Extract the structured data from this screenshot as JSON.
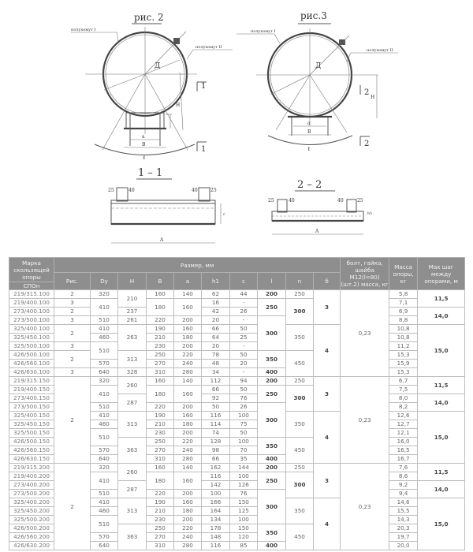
{
  "drawing": {
    "fig2_title": "рис. 2",
    "fig3_title": "рис.3",
    "section1_title": "1 – 1",
    "section2_title": "2 – 2",
    "clamp1_label": "полухомут I",
    "clamp2_label": "полухомут II",
    "section1_mark": "1",
    "section2_mark": "2",
    "dim_D": "Д",
    "dim_H": "H",
    "dim_l": "ℓ",
    "dim_B": "B",
    "dim_a": "a",
    "dim_A": "A",
    "dim_c": "c",
    "dim_h1": "h1",
    "dim_40": "40",
    "dim_25": "25"
  },
  "table": {
    "headers": {
      "mark": "Марка скользящей опоры",
      "mark_sub": "СПОн",
      "size": "Размер, мм",
      "fig": "Рис.",
      "dy": "Dy",
      "h": "H",
      "b": "B",
      "a": "a",
      "h1": "h1",
      "c": "c",
      "l": "l",
      "n": "n",
      "b6": "б",
      "bolt": "болт, гайка, шайба М12(l=80) (шт.2) масса, кг",
      "mass": "Масса опоры, кг",
      "step": "Мах шаг между опорами, м"
    },
    "groups": [
      [
        [
          "219/315.100",
          "2",
          "320",
          "210",
          "160",
          "140",
          "62",
          "44",
          "200",
          "250",
          "3",
          "0,23",
          "5,8",
          "11,5"
        ],
        [
          "219/400.100",
          "3",
          "410",
          null,
          "180",
          "160",
          "16",
          "-",
          "250",
          "300",
          null,
          null,
          "7,1",
          null
        ],
        [
          "273/400.100",
          "2",
          null,
          "237",
          null,
          null,
          "42",
          "26",
          null,
          null,
          null,
          null,
          "6,9",
          "14,0"
        ],
        [
          "273/500.100",
          "3",
          "510",
          "261",
          "220",
          "200",
          "20",
          "-",
          "300",
          null,
          null,
          null,
          "8,8",
          null
        ],
        [
          "325/400.100",
          "2",
          "410",
          "263",
          "190",
          "160",
          "66",
          "50",
          null,
          "350",
          "4",
          null,
          "10,8",
          "15,0"
        ],
        [
          "325/450.100",
          null,
          "460",
          null,
          "210",
          "180",
          "64",
          "25",
          null,
          null,
          null,
          null,
          "10,8",
          null
        ],
        [
          "325/500.100",
          "3",
          "510",
          null,
          "230",
          "200",
          "20",
          "-",
          null,
          null,
          null,
          null,
          "11,2",
          null
        ],
        [
          "426/500.100",
          "2",
          null,
          "313",
          "250",
          "220",
          "78",
          "50",
          "350",
          "450",
          null,
          null,
          "15,3",
          null
        ],
        [
          "426/560.100",
          null,
          "570",
          null,
          "270",
          "240",
          "48",
          "20",
          null,
          null,
          null,
          null,
          "15,9",
          null
        ],
        [
          "426/630.100",
          "3",
          "640",
          "328",
          "310",
          "280",
          "34",
          "-",
          "400",
          null,
          null,
          null,
          "15,3",
          null
        ]
      ],
      [
        [
          "219/315.150",
          "2",
          "320",
          "260",
          "160",
          "140",
          "112",
          "94",
          "200",
          "250",
          "3",
          "0,23",
          "6,7",
          "11,5"
        ],
        [
          "219/400.150",
          null,
          "410",
          null,
          "180",
          "160",
          "66",
          "50",
          "250",
          "300",
          null,
          null,
          "7,5",
          null
        ],
        [
          "273/400.150",
          null,
          null,
          "287",
          null,
          null,
          "92",
          "76",
          null,
          null,
          null,
          null,
          "8,0",
          "14,0"
        ],
        [
          "273/500.150",
          null,
          "510",
          null,
          "220",
          "200",
          "50",
          "26",
          "300",
          null,
          null,
          null,
          "8,2",
          null
        ],
        [
          "325/400.150",
          null,
          "410",
          "313",
          "190",
          "160",
          "116",
          "100",
          null,
          "350",
          "4",
          null,
          "12,6",
          "15,0"
        ],
        [
          "325/450.150",
          null,
          "460",
          null,
          "210",
          "180",
          "114",
          "75",
          null,
          null,
          null,
          null,
          "12,7",
          null
        ],
        [
          "325/500.150",
          null,
          "510",
          null,
          "230",
          "200",
          "74",
          "50",
          null,
          null,
          null,
          null,
          "12,1",
          null
        ],
        [
          "426/500.150",
          null,
          null,
          "363",
          "250",
          "220",
          "128",
          "100",
          "350",
          "450",
          null,
          null,
          "16,0",
          null
        ],
        [
          "426/560.150",
          null,
          "570",
          null,
          "270",
          "240",
          "98",
          "70",
          null,
          null,
          null,
          null,
          "16,5",
          null
        ],
        [
          "426/630.150",
          null,
          "640",
          null,
          "310",
          "280",
          "66",
          "35",
          "400",
          null,
          null,
          null,
          "16,7",
          null
        ]
      ],
      [
        [
          "219/315.200",
          "2",
          "320",
          "260",
          "160",
          "140",
          "162",
          "144",
          "200",
          "250",
          "3",
          "0,23",
          "7,6",
          "11,5"
        ],
        [
          "219/400.200",
          null,
          "410",
          null,
          "180",
          "160",
          "116",
          "100",
          "250",
          "300",
          null,
          null,
          "8,6",
          null
        ],
        [
          "273/400.200",
          null,
          null,
          "287",
          null,
          null,
          "142",
          "126",
          null,
          null,
          null,
          null,
          "9,2",
          "14,0"
        ],
        [
          "273/500.200",
          null,
          "510",
          null,
          "220",
          "200",
          "100",
          "76",
          "300",
          null,
          null,
          null,
          "9,4",
          null
        ],
        [
          "325/400.200",
          null,
          "410",
          "313",
          "190",
          "160",
          "166",
          "150",
          null,
          "350",
          "4",
          null,
          "14,6",
          "15,0"
        ],
        [
          "325/450.200",
          null,
          "460",
          null,
          "210",
          "180",
          "164",
          "125",
          null,
          null,
          null,
          null,
          "15,5",
          null
        ],
        [
          "325/500.200",
          null,
          "510",
          null,
          "230",
          "200",
          "134",
          "100",
          null,
          null,
          null,
          null,
          "14,3",
          null
        ],
        [
          "426/500.200",
          null,
          null,
          "363",
          "250",
          "220",
          "178",
          "150",
          "350",
          "450",
          null,
          null,
          "20,3",
          null
        ],
        [
          "426/560.200",
          null,
          "570",
          null,
          "270",
          "240",
          "148",
          "120",
          null,
          null,
          null,
          null,
          "19,7",
          null
        ],
        [
          "426/630.200",
          null,
          "640",
          null,
          "310",
          "280",
          "116",
          "85",
          "400",
          null,
          null,
          null,
          "20,0",
          null
        ]
      ]
    ]
  }
}
